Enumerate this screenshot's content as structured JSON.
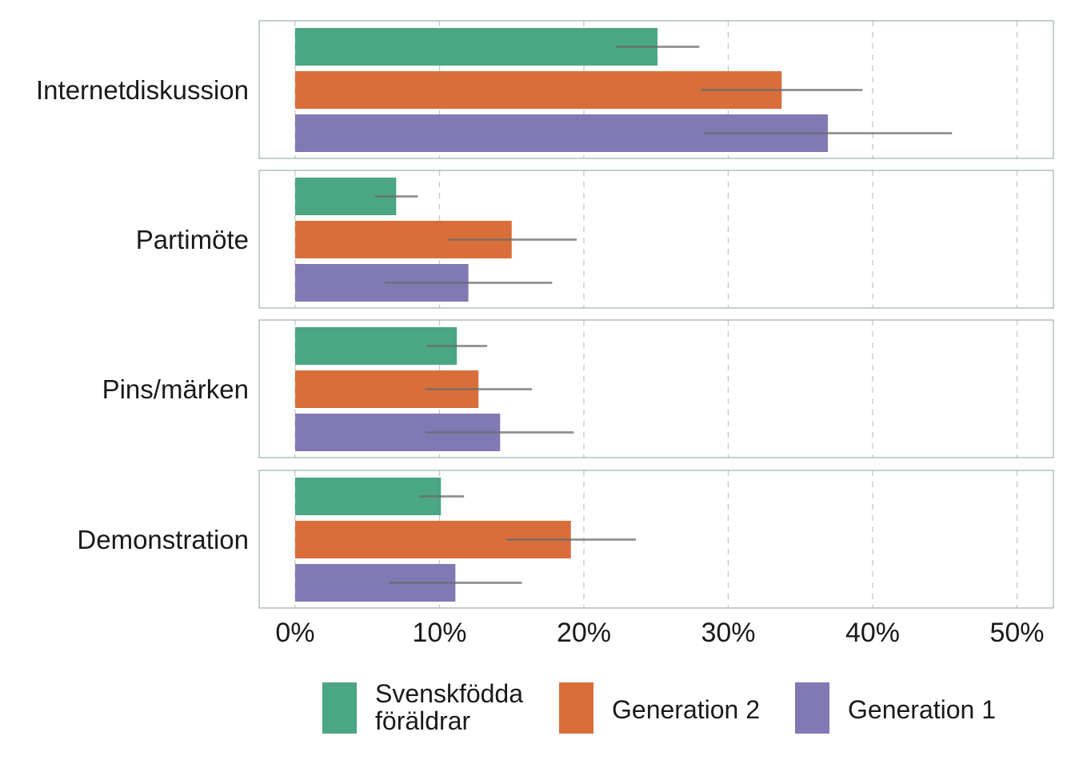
{
  "chart_data": {
    "type": "bar",
    "orientation": "horizontal",
    "categories": [
      "Internetdiskussion",
      "Partimöte",
      "Pins/märken",
      "Demonstration"
    ],
    "series": [
      {
        "name": "Svenskfödda föräldrar",
        "name_lines": [
          "Svenskfödda",
          "föräldrar"
        ],
        "color": "#4aa683",
        "values": [
          25.1,
          7.0,
          11.2,
          10.1
        ],
        "ci_low": [
          22.2,
          5.5,
          9.1,
          8.6
        ],
        "ci_high": [
          28.0,
          8.5,
          13.3,
          11.7
        ]
      },
      {
        "name": "Generation 2",
        "name_lines": [
          "Generation 2"
        ],
        "color": "#d96e3b",
        "values": [
          33.7,
          15.0,
          12.7,
          19.1
        ],
        "ci_low": [
          28.1,
          10.6,
          9.0,
          14.6
        ],
        "ci_high": [
          39.3,
          19.5,
          16.4,
          23.6
        ]
      },
      {
        "name": "Generation 1",
        "name_lines": [
          "Generation 1"
        ],
        "color": "#8079b4",
        "values": [
          36.9,
          12.0,
          14.2,
          11.1
        ],
        "ci_low": [
          28.3,
          6.2,
          9.0,
          6.5
        ],
        "ci_high": [
          45.5,
          17.8,
          19.3,
          15.7
        ]
      }
    ],
    "x_ticks": [
      0,
      10,
      20,
      30,
      40,
      50
    ],
    "x_tick_labels": [
      "0%",
      "10%",
      "20%",
      "30%",
      "40%",
      "50%"
    ],
    "xlim": [
      0,
      52
    ],
    "xlabel": "",
    "ylabel": "",
    "grid": "vertical dashed",
    "legend_position": "bottom",
    "facets": "one panel per category"
  }
}
